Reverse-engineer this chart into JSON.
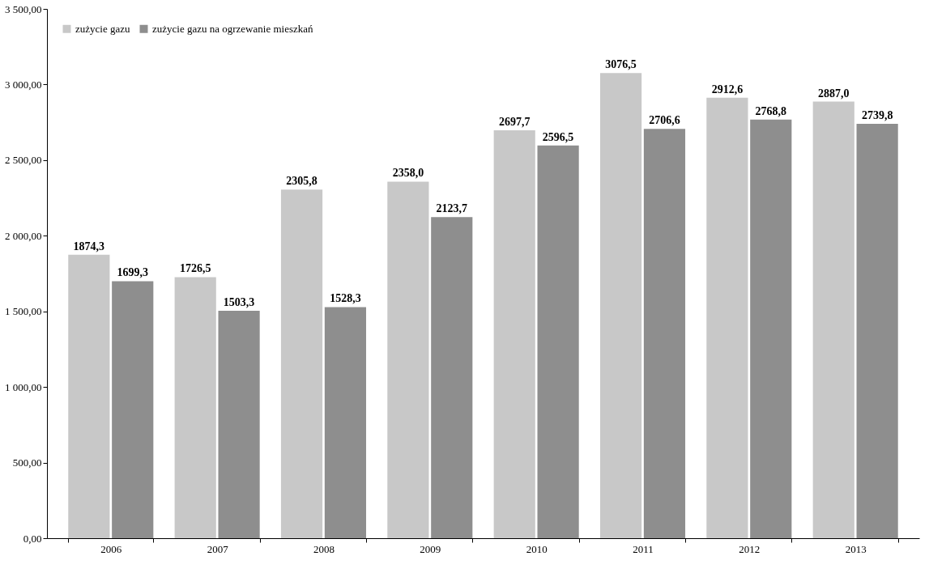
{
  "chart_data": {
    "type": "bar",
    "categories": [
      "2006",
      "2007",
      "2008",
      "2009",
      "2010",
      "2011",
      "2012",
      "2013"
    ],
    "series": [
      {
        "name": "zużycie gazu",
        "color": "#c8c8c8",
        "values": [
          1874.3,
          1726.5,
          2305.8,
          2358.0,
          2697.7,
          3076.5,
          2912.6,
          2887.0
        ],
        "value_labels": [
          "1874,3",
          "1726,5",
          "2305,8",
          "2358,0",
          "2697,7",
          "3076,5",
          "2912,6",
          "2887,0"
        ]
      },
      {
        "name": "zużycie gazu na ogrzewanie mieszkań",
        "color": "#8e8e8e",
        "values": [
          1699.3,
          1503.3,
          1528.3,
          2123.7,
          2596.5,
          2706.6,
          2768.8,
          2739.8
        ],
        "value_labels": [
          "1699,3",
          "1503,3",
          "1528,3",
          "2123,7",
          "2596,5",
          "2706,6",
          "2768,8",
          "2739,8"
        ]
      }
    ],
    "ylim": [
      0,
      3500
    ],
    "yticks": [
      {
        "value": 0,
        "label": "0,00"
      },
      {
        "value": 500,
        "label": "500,00"
      },
      {
        "value": 1000,
        "label": "1 000,00"
      },
      {
        "value": 1500,
        "label": "1 500,00"
      },
      {
        "value": 2000,
        "label": "2 000,00"
      },
      {
        "value": 2500,
        "label": "2 500,00"
      },
      {
        "value": 3000,
        "label": "3 000,00"
      },
      {
        "value": 3500,
        "label": "3 500,00"
      }
    ],
    "grid": false,
    "legend": "top left"
  }
}
